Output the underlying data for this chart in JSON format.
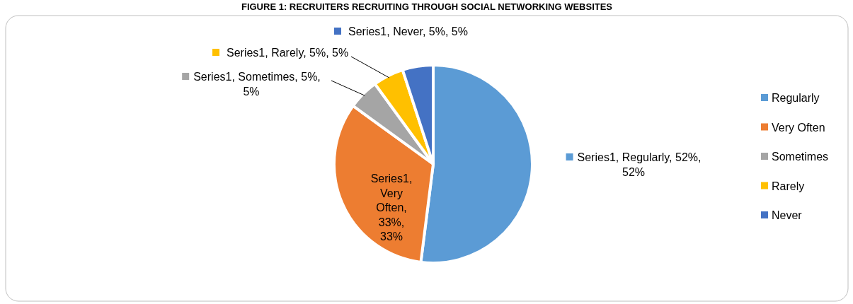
{
  "chart_data": {
    "type": "pie",
    "title": "FIGURE 1: RECRUITERS RECRUITING THROUGH SOCIAL NETWORKING WEBSITES",
    "categories": [
      "Regularly",
      "Very Often",
      "Sometimes",
      "Rarely",
      "Never"
    ],
    "values": [
      52,
      33,
      5,
      5,
      5
    ],
    "colors": [
      "#5b9bd5",
      "#ed7d31",
      "#a5a5a5",
      "#ffc000",
      "#4472c4"
    ],
    "value_labels": [
      "Series1, Regularly, 52%, 52%",
      "Series1, Very Often, 33%, 33%",
      "Series1, Sometimes, 5%, 5%",
      "Series1, Rarely, 5%, 5%",
      "Series1, Never, 5%, 5%"
    ],
    "legend": "right"
  }
}
